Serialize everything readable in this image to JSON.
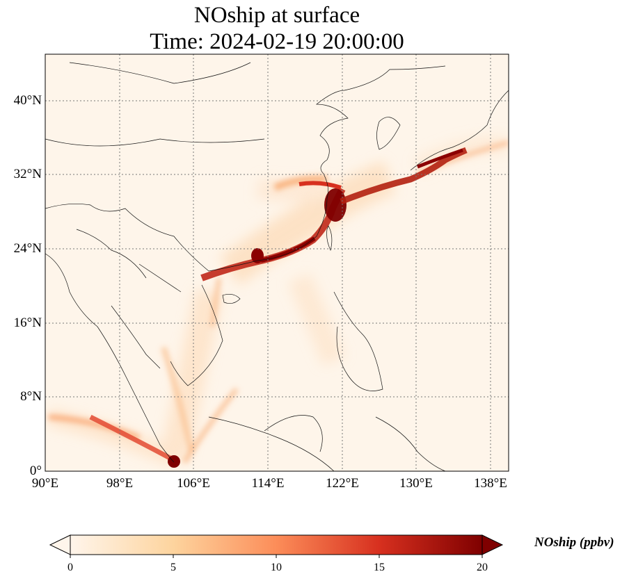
{
  "title_line1": "NOship at surface",
  "title_line2": "Time: 2024-02-19 20:00:00",
  "x_ticks": [
    "90°E",
    "98°E",
    "106°E",
    "114°E",
    "122°E",
    "130°E",
    "138°E"
  ],
  "y_ticks": [
    "40°N",
    "32°N",
    "24°N",
    "16°N",
    "8°N",
    "0°"
  ],
  "colorbar": {
    "label": "NOship (ppbv)",
    "ticks": [
      "0",
      "5",
      "10",
      "15",
      "20"
    ],
    "colors": [
      "#fff5eb",
      "#fdd49e",
      "#fc8d59",
      "#d7301f",
      "#7f0000"
    ]
  },
  "map_extent": {
    "lon_min": 90,
    "lon_max": 140,
    "lat_min": 0,
    "lat_max": 45
  }
}
